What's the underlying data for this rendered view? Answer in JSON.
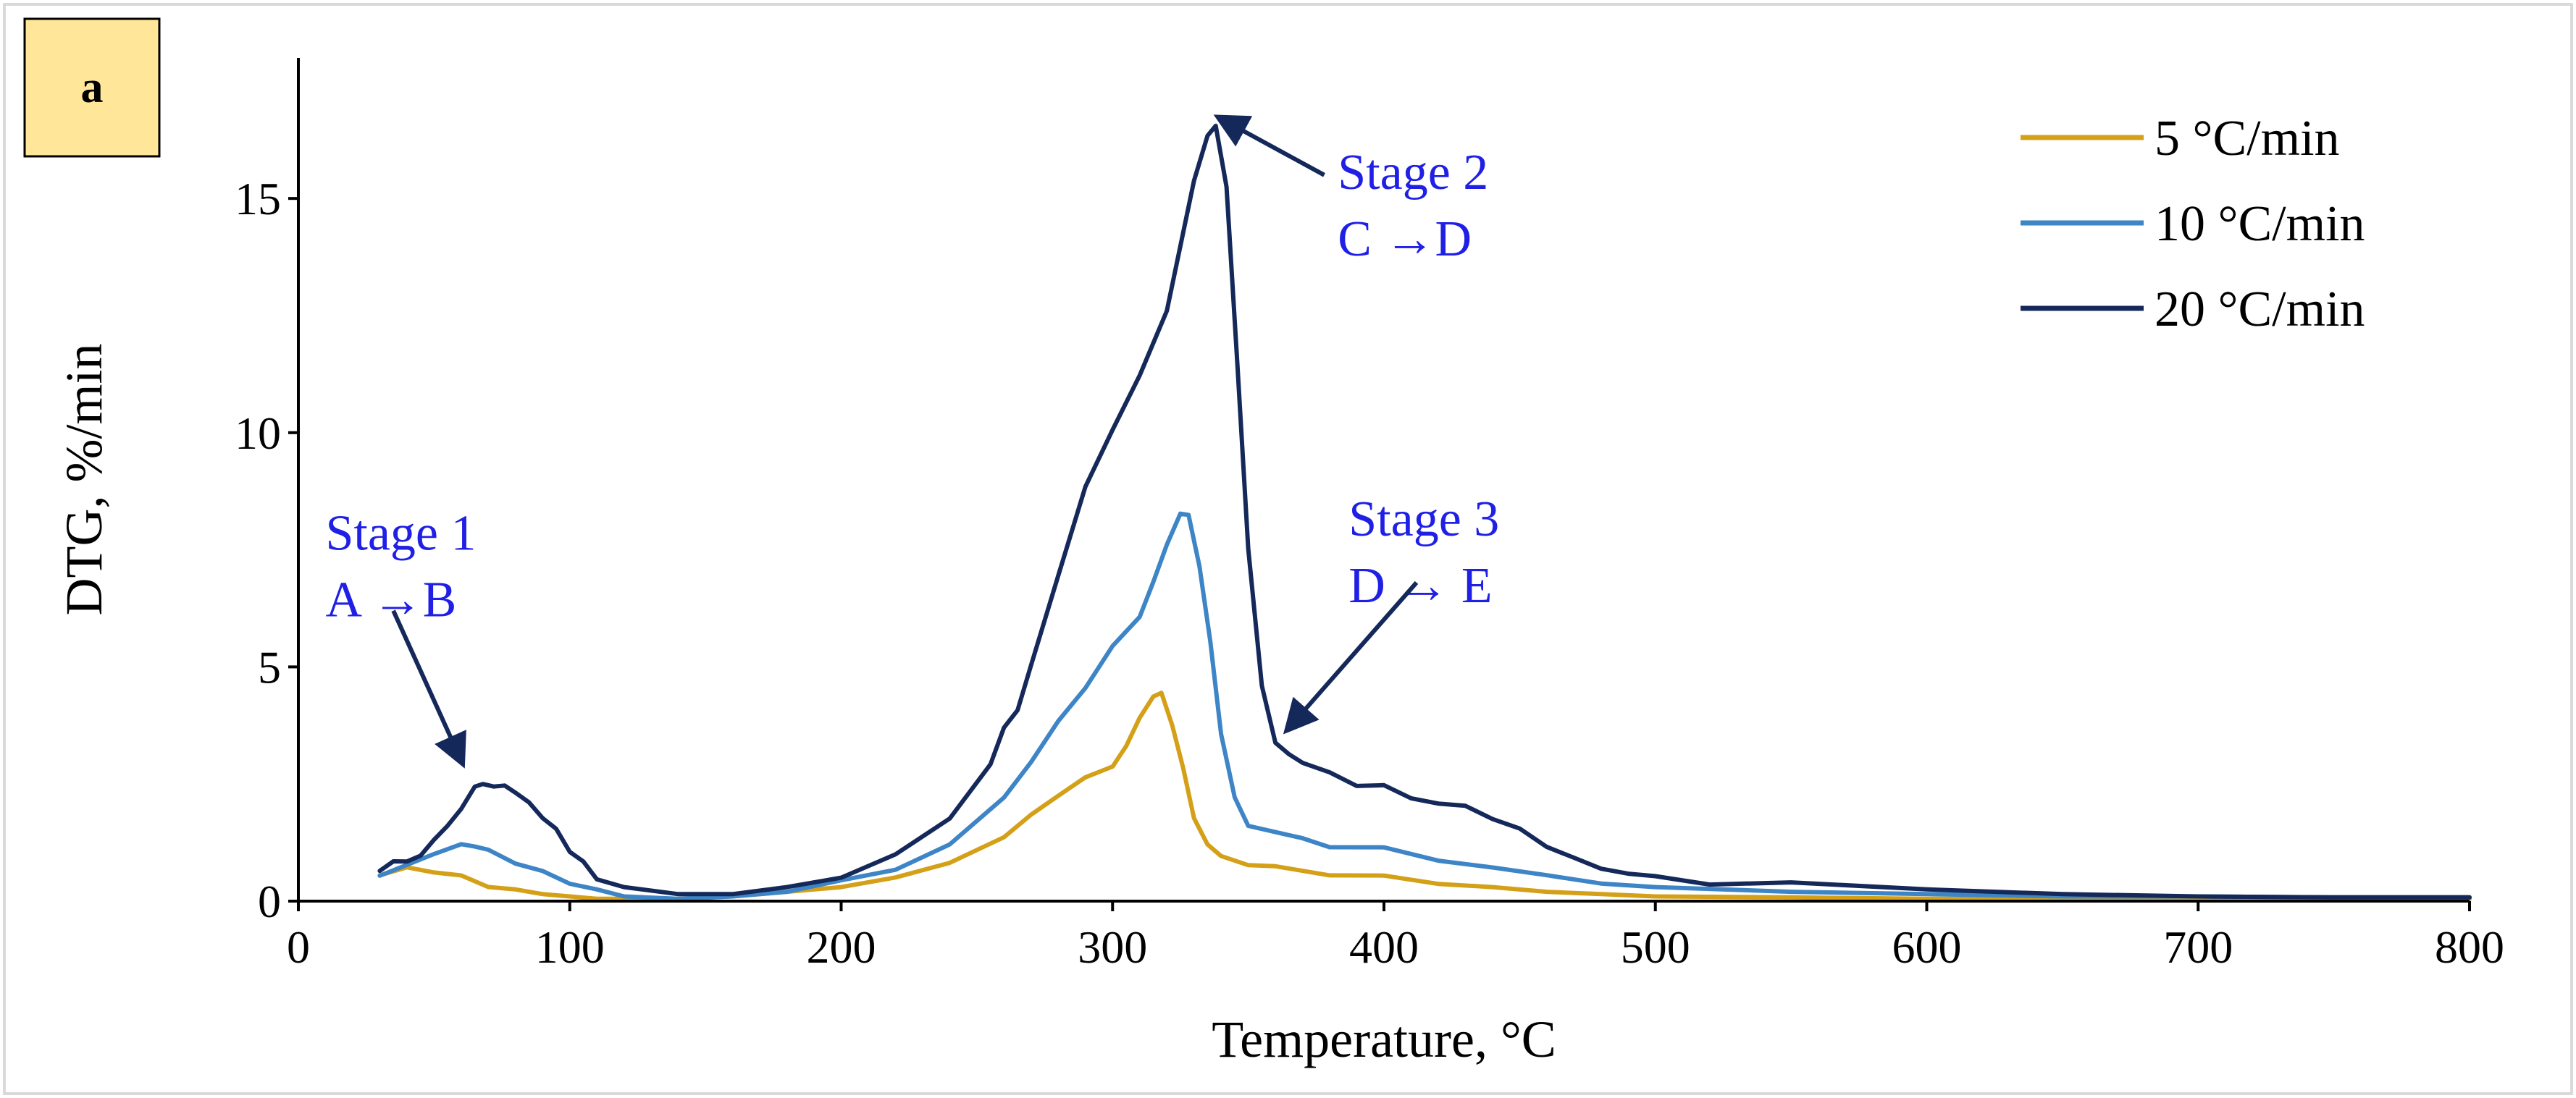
{
  "panel_label": "a",
  "chart_data": {
    "type": "line",
    "title": "",
    "xlabel": "Temperature, °C",
    "ylabel": "DTG,  %/min",
    "xlim": [
      0,
      800
    ],
    "ylim": [
      0,
      18
    ],
    "xticks": [
      0,
      100,
      200,
      300,
      400,
      500,
      600,
      700,
      800
    ],
    "yticks": [
      0,
      5,
      10,
      15
    ],
    "legend_position": "top-right",
    "series": [
      {
        "name": "5 °C/min",
        "color": "#d4a017",
        "x": [
          30,
          40,
          50,
          60,
          70,
          80,
          90,
          100,
          110,
          120,
          140,
          160,
          180,
          200,
          220,
          240,
          260,
          270,
          280,
          290,
          300,
          305,
          310,
          315,
          318,
          322,
          326,
          330,
          335,
          340,
          350,
          360,
          380,
          400,
          420,
          440,
          460,
          480,
          500,
          550,
          600,
          650,
          700,
          750,
          800
        ],
        "y": [
          0.55,
          0.7,
          0.65,
          0.5,
          0.35,
          0.25,
          0.15,
          0.1,
          0.05,
          0.05,
          0.05,
          0.1,
          0.2,
          0.3,
          0.5,
          0.8,
          1.4,
          1.8,
          2.3,
          2.6,
          2.9,
          3.3,
          3.9,
          4.4,
          4.4,
          3.8,
          2.8,
          1.8,
          1.2,
          0.95,
          0.8,
          0.7,
          0.6,
          0.5,
          0.4,
          0.3,
          0.2,
          0.15,
          0.1,
          0.08,
          0.05,
          0.05,
          0.05,
          0.05,
          0.05
        ]
      },
      {
        "name": "10 °C/min",
        "color": "#3d85c6",
        "x": [
          30,
          40,
          50,
          60,
          65,
          70,
          80,
          90,
          100,
          110,
          120,
          140,
          160,
          180,
          200,
          220,
          240,
          260,
          270,
          280,
          290,
          300,
          310,
          315,
          320,
          325,
          328,
          332,
          336,
          340,
          345,
          350,
          360,
          370,
          380,
          400,
          420,
          440,
          460,
          480,
          500,
          550,
          600,
          650,
          700,
          750,
          800
        ],
        "y": [
          0.5,
          0.8,
          1.0,
          1.2,
          1.2,
          1.05,
          0.85,
          0.6,
          0.4,
          0.25,
          0.1,
          0.05,
          0.1,
          0.2,
          0.4,
          0.7,
          1.2,
          2.2,
          3.0,
          3.8,
          4.6,
          5.4,
          6.1,
          6.8,
          7.6,
          8.3,
          8.2,
          7.2,
          5.5,
          3.6,
          2.2,
          1.6,
          1.5,
          1.3,
          1.2,
          1.1,
          0.9,
          0.7,
          0.55,
          0.4,
          0.3,
          0.2,
          0.15,
          0.1,
          0.1,
          0.08,
          0.08
        ]
      },
      {
        "name": "20 °C/min",
        "color": "#14285a",
        "x": [
          30,
          35,
          40,
          45,
          50,
          55,
          60,
          65,
          68,
          72,
          76,
          80,
          85,
          90,
          95,
          100,
          105,
          110,
          120,
          140,
          160,
          180,
          200,
          220,
          240,
          255,
          260,
          265,
          270,
          280,
          290,
          300,
          310,
          320,
          330,
          335,
          338,
          342,
          346,
          350,
          355,
          360,
          365,
          370,
          380,
          390,
          400,
          410,
          420,
          430,
          440,
          450,
          460,
          470,
          480,
          490,
          500,
          520,
          550,
          600,
          650,
          700,
          750,
          800
        ],
        "y": [
          0.6,
          0.9,
          0.8,
          1.0,
          1.3,
          1.6,
          2.0,
          2.4,
          2.55,
          2.4,
          2.5,
          2.3,
          2.1,
          1.8,
          1.5,
          1.1,
          0.8,
          0.5,
          0.3,
          0.15,
          0.15,
          0.3,
          0.55,
          0.95,
          1.8,
          2.9,
          3.7,
          4.1,
          5.0,
          7.0,
          8.8,
          10.1,
          11.2,
          12.6,
          15.4,
          16.3,
          16.6,
          15.2,
          11.5,
          7.5,
          4.6,
          3.4,
          3.1,
          3.0,
          2.7,
          2.5,
          2.45,
          2.2,
          2.1,
          2.0,
          1.8,
          1.5,
          1.2,
          0.9,
          0.7,
          0.6,
          0.5,
          0.4,
          0.35,
          0.25,
          0.15,
          0.1,
          0.08,
          0.08
        ]
      }
    ],
    "annotations": [
      {
        "line1": "Stage 1",
        "line2": "A →B",
        "text_x": 10,
        "text_y": 7.5,
        "arrow_from": [
          35,
          6.2
        ],
        "arrow_to": [
          60,
          3.0
        ]
      },
      {
        "line1": "Stage 2",
        "line2": "C →D",
        "text_x": 383,
        "text_y": 15.2,
        "arrow_from": [
          378,
          15.5
        ],
        "arrow_to": [
          340,
          16.7
        ]
      },
      {
        "line1": "Stage 3",
        "line2": "D → E",
        "text_x": 387,
        "text_y": 7.8,
        "arrow_from": [
          412,
          6.8
        ],
        "arrow_to": [
          365,
          3.7
        ]
      }
    ]
  }
}
